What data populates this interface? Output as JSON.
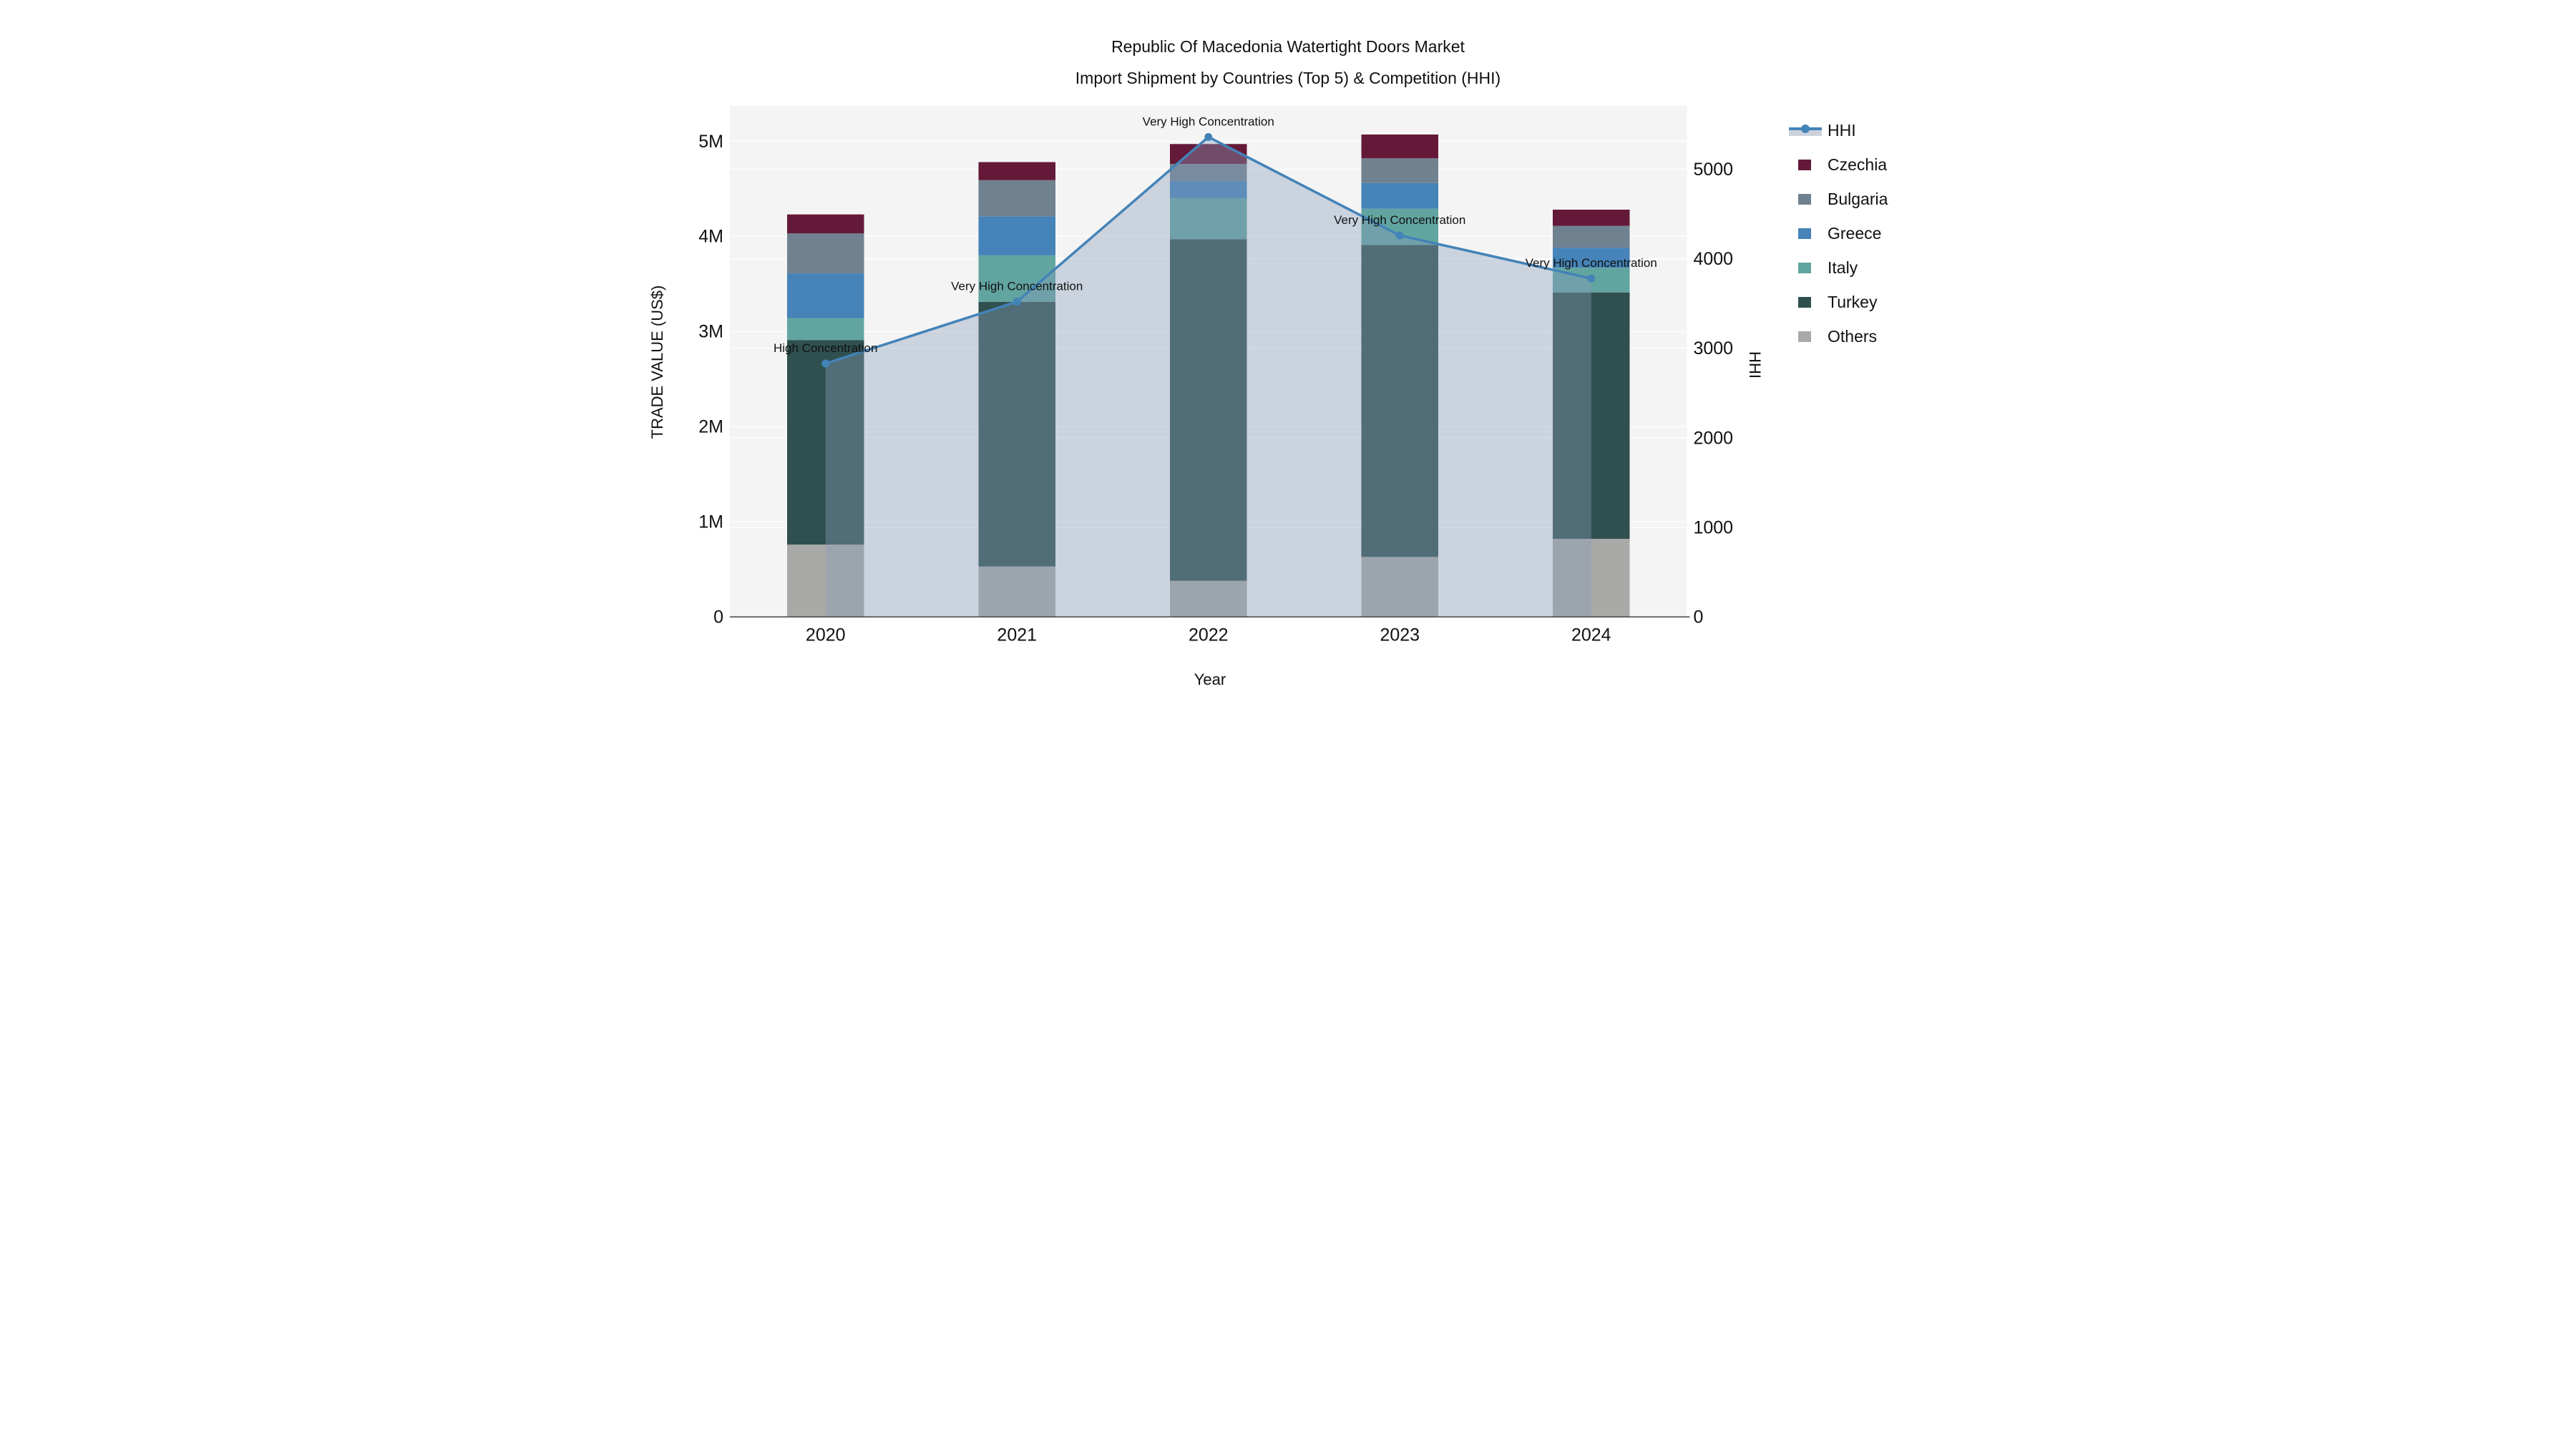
{
  "title": {
    "line1": "Republic Of Macedonia Watertight Doors Market",
    "line2": "Import Shipment by Countries (Top 5) & Competition (HHI)"
  },
  "y_axis_left": {
    "title": "TRADE VALUE (US$)",
    "tick_labels": [
      "0",
      "1M",
      "2M",
      "3M",
      "4M",
      "5M"
    ],
    "tick_values": [
      0,
      1000000,
      2000000,
      3000000,
      4000000,
      5000000
    ]
  },
  "y_axis_right": {
    "title": "HHI",
    "tick_labels": [
      "0",
      "1000",
      "2000",
      "3000",
      "4000",
      "5000"
    ],
    "tick_values": [
      0,
      1000,
      2000,
      3000,
      4000,
      5000
    ]
  },
  "x_axis": {
    "title": "Year",
    "tick_labels": [
      "2020",
      "2021",
      "2022",
      "2023",
      "2024"
    ]
  },
  "legend": {
    "items": [
      {
        "label": "HHI",
        "type": "line",
        "color": "#4383b8"
      },
      {
        "label": "Czechia",
        "type": "swatch",
        "color": "#641939"
      },
      {
        "label": "Bulgaria",
        "type": "swatch",
        "color": "#70818f"
      },
      {
        "label": "Greece",
        "type": "swatch",
        "color": "#4583b8"
      },
      {
        "label": "Italy",
        "type": "swatch",
        "color": "#62a4a0"
      },
      {
        "label": "Turkey",
        "type": "swatch",
        "color": "#2f504e"
      },
      {
        "label": "Others",
        "type": "swatch",
        "color": "#a9a9a7"
      }
    ]
  },
  "chart_data": {
    "type": "bar+line",
    "title": "Republic Of Macedonia Watertight Doors Market Import Shipment by Countries (Top 5) & Competition (HHI)",
    "categories": [
      "2020",
      "2021",
      "2022",
      "2023",
      "2024"
    ],
    "bar_unit": "US$",
    "stack_order_bottom_to_top": [
      "Others",
      "Turkey",
      "Italy",
      "Greece",
      "Bulgaria",
      "Czechia"
    ],
    "series": [
      {
        "name": "Czechia",
        "color": "#641939",
        "values": [
          200000,
          190000,
          210000,
          250000,
          170000
        ]
      },
      {
        "name": "Bulgaria",
        "color": "#70818f",
        "values": [
          420000,
          380000,
          180000,
          260000,
          230000
        ]
      },
      {
        "name": "Greece",
        "color": "#4583b8",
        "values": [
          470000,
          410000,
          180000,
          270000,
          210000
        ]
      },
      {
        "name": "Italy",
        "color": "#62a4a0",
        "values": [
          230000,
          490000,
          430000,
          380000,
          260000
        ]
      },
      {
        "name": "Turkey",
        "color": "#2f504e",
        "values": [
          2150000,
          2780000,
          3590000,
          3280000,
          2590000
        ]
      },
      {
        "name": "Others",
        "color": "#a9a9a7",
        "values": [
          760000,
          530000,
          380000,
          630000,
          820000
        ]
      }
    ],
    "line_series": {
      "name": "HHI",
      "axis": "right",
      "color": "#4383b8",
      "area_fill": "rgba(137,157,186,0.38)",
      "values": [
        2830,
        3520,
        5360,
        4260,
        3780
      ]
    },
    "annotations": [
      {
        "category": "2020",
        "text": "High Concentration"
      },
      {
        "category": "2021",
        "text": "Very High Concentration"
      },
      {
        "category": "2022",
        "text": "Very High Concentration"
      },
      {
        "category": "2023",
        "text": "Very High Concentration"
      },
      {
        "category": "2024",
        "text": "Very High Concentration"
      }
    ],
    "xlabel": "Year",
    "ylabel_left": "TRADE VALUE (US$)",
    "ylabel_right": "HHI",
    "ylim_left": [
      0,
      5375000
    ],
    "ylim_right": [
      0,
      5712
    ],
    "grid": true,
    "plot_bg": "#f4f4f4",
    "grid_color": "#ffffff",
    "axis_line_color": "#454545",
    "legend_position": "right"
  }
}
